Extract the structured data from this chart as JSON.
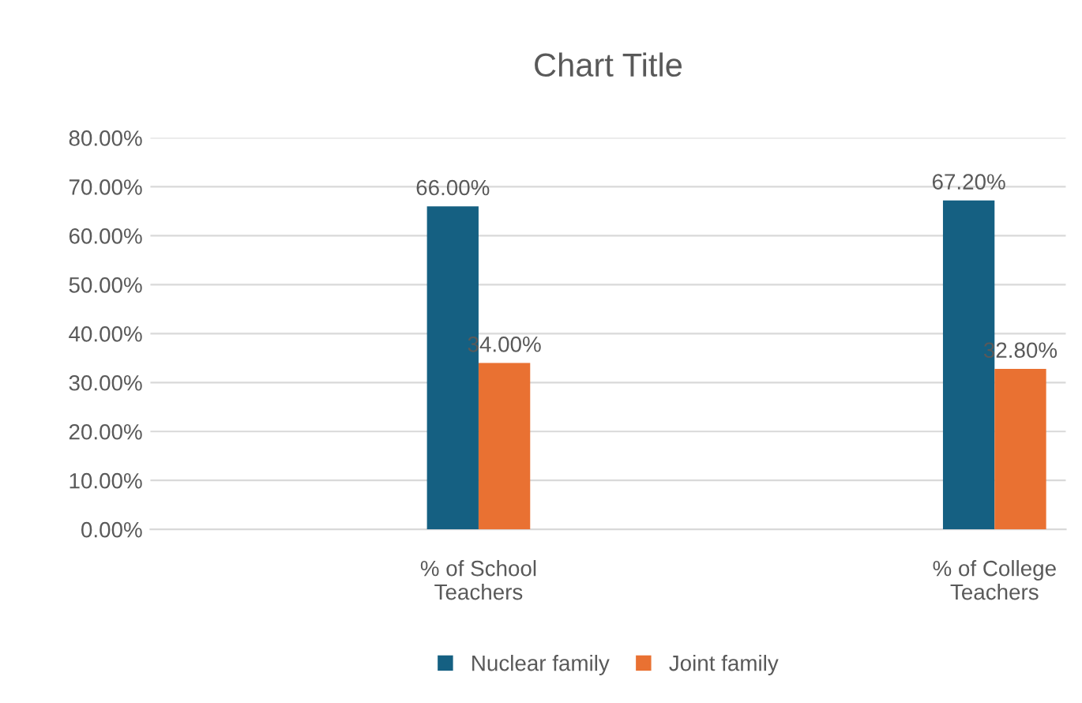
{
  "chart_data": {
    "type": "bar",
    "title": "Chart Title",
    "categories": [
      "% of School\nTeachers",
      "% of College\nTeachers"
    ],
    "series": [
      {
        "name": "Nuclear family",
        "color": "#156082",
        "values": [
          66.0,
          67.2
        ],
        "value_labels": [
          "66.00%",
          "67.20%"
        ]
      },
      {
        "name": "Joint family",
        "color": "#e97132",
        "values": [
          34.0,
          32.8
        ],
        "value_labels": [
          "34.00%",
          "32.80%"
        ]
      }
    ],
    "ylim": [
      0,
      80
    ],
    "yticks": [
      {
        "value": 0,
        "label": "0.00%"
      },
      {
        "value": 10,
        "label": "10.00%"
      },
      {
        "value": 20,
        "label": "20.00%"
      },
      {
        "value": 30,
        "label": "30.00%"
      },
      {
        "value": 40,
        "label": "40.00%"
      },
      {
        "value": 50,
        "label": "50.00%"
      },
      {
        "value": 60,
        "label": "60.00%"
      },
      {
        "value": 70,
        "label": "70.00%"
      },
      {
        "value": 80,
        "label": "80.00%"
      }
    ],
    "grid": "y",
    "legend": "bottom"
  }
}
